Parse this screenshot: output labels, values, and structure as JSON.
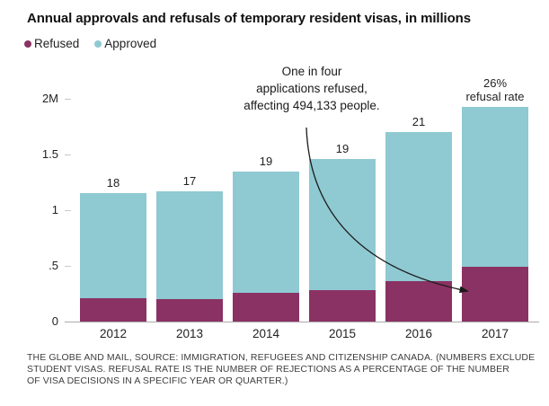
{
  "title": "Annual approvals and refusals of temporary resident visas, in millions",
  "legend": [
    {
      "label": "Refused",
      "color": "#8a3263"
    },
    {
      "label": "Approved",
      "color": "#8fc9d2"
    }
  ],
  "annotation": {
    "lines": [
      "One in four",
      "applications refused,",
      "affecting 494,133 people."
    ]
  },
  "source_note": {
    "lines": [
      "THE GLOBE AND MAIL, SOURCE: IMMIGRATION, REFUGEES AND CITIZENSHIP CANADA. (NUMBERS EXCLUDE",
      "STUDENT VISAS. REFUSAL RATE IS THE NUMBER OF REJECTIONS AS A PERCENTAGE OF THE NUMBER",
      "OF VISA DECISIONS IN A SPECIFIC YEAR OR QUARTER.)"
    ]
  },
  "chart_data": {
    "type": "bar",
    "stacked": true,
    "title": "Annual approvals and refusals of temporary resident visas, in millions",
    "categories": [
      "2012",
      "2013",
      "2014",
      "2015",
      "2016",
      "2017"
    ],
    "series": [
      {
        "name": "Refused",
        "color": "#8a3263",
        "values": [
          0.21,
          0.2,
          0.26,
          0.28,
          0.36,
          0.494
        ]
      },
      {
        "name": "Approved",
        "color": "#8fc9d2",
        "values": [
          0.94,
          0.97,
          1.09,
          1.18,
          1.34,
          1.436
        ]
      }
    ],
    "totals_millions": [
      1.15,
      1.17,
      1.35,
      1.46,
      1.7,
      1.93
    ],
    "bar_top_labels": [
      [
        "18"
      ],
      [
        "17"
      ],
      [
        "19"
      ],
      [
        "19"
      ],
      [
        "21"
      ],
      [
        "26%",
        "refusal rate"
      ]
    ],
    "xlabel": "",
    "ylabel": "millions",
    "ylim": [
      0,
      2
    ],
    "y_ticks": [
      {
        "value": 2,
        "label": "2M"
      },
      {
        "value": 1.5,
        "label": "1.5"
      },
      {
        "value": 1,
        "label": "1"
      },
      {
        "value": 0.5,
        "label": ".5"
      },
      {
        "value": 0,
        "label": "0"
      }
    ],
    "grid": false,
    "legend_position": "top-left"
  }
}
